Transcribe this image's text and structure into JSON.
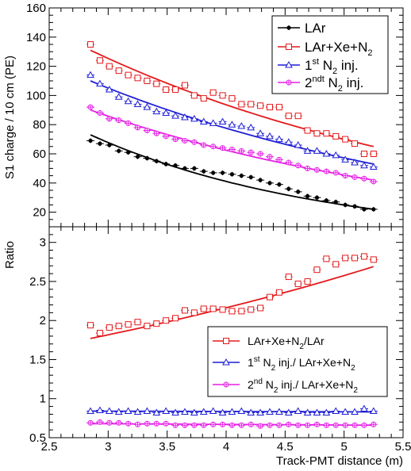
{
  "colors": {
    "larr": "#000000",
    "xe": "#e41a1c",
    "n1": "#1f1fd6",
    "n2": "#e61fe6",
    "axis": "#000000"
  },
  "chart_data": [
    {
      "type": "scatter",
      "ylabel": "S1 charge / 10 cm (PE)",
      "xlim": [
        2.5,
        5.5
      ],
      "ylim": [
        10,
        160
      ],
      "y_ticks": [
        20,
        40,
        60,
        80,
        100,
        120,
        140,
        160
      ],
      "legend_position": "top-right",
      "legend": [
        {
          "text": "LAr",
          "series": 0
        },
        {
          "text": "LAr+Xe+N",
          "sub": "2",
          "series": 1
        },
        {
          "text": " N",
          "sup": "st",
          "pre": "1",
          "sub": "2",
          "post": " inj.",
          "series": 2
        },
        {
          "text": " N",
          "sup": "ndt",
          "pre": "2",
          "sub": "2",
          "post": " inj.",
          "series": 3
        }
      ],
      "series": [
        {
          "name": "LAr",
          "marker": "filled-circle",
          "color_key": "larr",
          "x": [
            2.85,
            2.93,
            3.01,
            3.09,
            3.17,
            3.25,
            3.33,
            3.41,
            3.49,
            3.57,
            3.65,
            3.73,
            3.81,
            3.89,
            3.97,
            4.05,
            4.13,
            4.21,
            4.29,
            4.37,
            4.45,
            4.53,
            4.61,
            4.69,
            4.77,
            4.85,
            4.93,
            5.01,
            5.09,
            5.17,
            5.25
          ],
          "y": [
            69,
            67,
            66,
            62,
            61,
            58,
            57,
            55,
            53,
            52,
            50,
            50,
            48,
            47,
            47,
            46,
            45,
            44,
            42,
            40,
            39,
            36,
            34,
            31,
            30,
            28,
            27,
            25,
            24,
            22,
            22
          ],
          "fit": [
            73,
            22
          ]
        },
        {
          "name": "LAr+Xe+N2",
          "marker": "open-square",
          "color_key": "xe",
          "x": [
            2.85,
            2.93,
            3.01,
            3.09,
            3.17,
            3.25,
            3.33,
            3.41,
            3.49,
            3.57,
            3.65,
            3.73,
            3.81,
            3.89,
            3.97,
            4.05,
            4.13,
            4.21,
            4.29,
            4.37,
            4.45,
            4.53,
            4.61,
            4.69,
            4.77,
            4.85,
            4.93,
            5.01,
            5.09,
            5.17,
            5.25
          ],
          "y": [
            135,
            124,
            120,
            117,
            114,
            112,
            110,
            108,
            104,
            104,
            107,
            100,
            98,
            102,
            100,
            98,
            94,
            94,
            93,
            92,
            92,
            86,
            86,
            76,
            74,
            74,
            72,
            70,
            67,
            60,
            60
          ],
          "fit": [
            131,
            65
          ]
        },
        {
          "name": "1st N2 inj.",
          "marker": "open-triangle",
          "color_key": "n1",
          "x": [
            2.85,
            2.93,
            3.01,
            3.09,
            3.17,
            3.25,
            3.33,
            3.41,
            3.49,
            3.57,
            3.65,
            3.73,
            3.81,
            3.89,
            3.97,
            4.05,
            4.13,
            4.21,
            4.29,
            4.37,
            4.45,
            4.53,
            4.61,
            4.69,
            4.77,
            4.85,
            4.93,
            5.01,
            5.09,
            5.17,
            5.25
          ],
          "y": [
            114,
            108,
            104,
            99,
            96,
            94,
            92,
            89,
            88,
            86,
            85,
            84,
            82,
            81,
            82,
            80,
            79,
            78,
            74,
            72,
            70,
            68,
            66,
            62,
            62,
            60,
            59,
            56,
            54,
            52,
            51
          ],
          "fit": [
            110,
            53
          ]
        },
        {
          "name": "2ndt N2 inj.",
          "marker": "open-star",
          "color_key": "n2",
          "x": [
            2.85,
            2.93,
            3.01,
            3.09,
            3.17,
            3.25,
            3.33,
            3.41,
            3.49,
            3.57,
            3.65,
            3.73,
            3.81,
            3.89,
            3.97,
            4.05,
            4.13,
            4.21,
            4.29,
            4.37,
            4.45,
            4.53,
            4.61,
            4.69,
            4.77,
            4.85,
            4.93,
            5.01,
            5.09,
            5.17,
            5.25
          ],
          "y": [
            92,
            88,
            84,
            83,
            81,
            78,
            76,
            74,
            72,
            70,
            69,
            68,
            66,
            65,
            64,
            63,
            62,
            61,
            60,
            58,
            56,
            54,
            52,
            50,
            49,
            48,
            47,
            45,
            44,
            43,
            41
          ],
          "fit": [
            90,
            42
          ]
        }
      ]
    },
    {
      "type": "scatter",
      "xlabel": "Track-PMT distance (m)",
      "ylabel": "Ratio",
      "xlim": [
        2.5,
        5.5
      ],
      "ylim": [
        0.5,
        3.2
      ],
      "x_ticks": [
        2.5,
        3,
        3.5,
        4,
        4.5,
        5,
        5.5
      ],
      "y_ticks": [
        0.5,
        1,
        1.5,
        2,
        2.5,
        3
      ],
      "legend_position": "bottom-right",
      "legend": [
        {
          "pre": "LAr+Xe+N",
          "sub": "2",
          "post": "/LAr",
          "series": 0
        },
        {
          "pre": "1",
          "sup": "st",
          "mid": " N",
          "sub": "2",
          "post": " inj./ LAr+Xe+N",
          "sub2": "2",
          "series": 1
        },
        {
          "pre": "2",
          "sup": "nd",
          "mid": " N",
          "sub": "2",
          "post": " inj./ LAr+Xe+N",
          "sub2": "2",
          "series": 2
        }
      ],
      "series": [
        {
          "name": "LAr+Xe+N2/LAr",
          "marker": "open-square",
          "color_key": "xe",
          "x": [
            2.85,
            2.93,
            3.01,
            3.09,
            3.17,
            3.25,
            3.33,
            3.41,
            3.49,
            3.57,
            3.65,
            3.73,
            3.81,
            3.89,
            3.97,
            4.05,
            4.13,
            4.21,
            4.29,
            4.37,
            4.45,
            4.53,
            4.61,
            4.69,
            4.77,
            4.85,
            4.93,
            5.01,
            5.09,
            5.17,
            5.25
          ],
          "y": [
            1.94,
            1.84,
            1.91,
            1.93,
            1.95,
            1.98,
            1.93,
            1.96,
            2.0,
            2.03,
            2.13,
            2.1,
            2.15,
            2.15,
            2.14,
            2.12,
            2.12,
            2.14,
            2.16,
            2.3,
            2.36,
            2.56,
            2.47,
            2.5,
            2.65,
            2.79,
            2.72,
            2.8,
            2.8,
            2.82,
            2.78
          ],
          "fit": [
            1.77,
            2.69
          ]
        },
        {
          "name": "1st N2 inj./ LAr+Xe+N2",
          "marker": "open-triangle",
          "color_key": "n1",
          "x": [
            2.85,
            2.93,
            3.01,
            3.09,
            3.17,
            3.25,
            3.33,
            3.41,
            3.49,
            3.57,
            3.65,
            3.73,
            3.81,
            3.89,
            3.97,
            4.05,
            4.13,
            4.21,
            4.29,
            4.37,
            4.45,
            4.53,
            4.61,
            4.69,
            4.77,
            4.85,
            4.93,
            5.01,
            5.09,
            5.17,
            5.25
          ],
          "y": [
            0.84,
            0.85,
            0.84,
            0.83,
            0.84,
            0.83,
            0.84,
            0.82,
            0.84,
            0.82,
            0.83,
            0.82,
            0.83,
            0.84,
            0.82,
            0.83,
            0.84,
            0.82,
            0.82,
            0.83,
            0.83,
            0.82,
            0.84,
            0.82,
            0.82,
            0.82,
            0.84,
            0.83,
            0.83,
            0.87,
            0.84
          ],
          "fit": [
            0.84,
            0.83
          ]
        },
        {
          "name": "2nd N2 inj./ LAr+Xe+N2",
          "marker": "open-star",
          "color_key": "n2",
          "x": [
            2.85,
            2.93,
            3.01,
            3.09,
            3.17,
            3.25,
            3.33,
            3.41,
            3.49,
            3.57,
            3.65,
            3.73,
            3.81,
            3.89,
            3.97,
            4.05,
            4.13,
            4.21,
            4.29,
            4.37,
            4.45,
            4.53,
            4.61,
            4.69,
            4.77,
            4.85,
            4.93,
            5.01,
            5.09,
            5.17,
            5.25
          ],
          "y": [
            0.69,
            0.7,
            0.69,
            0.69,
            0.68,
            0.67,
            0.68,
            0.68,
            0.68,
            0.66,
            0.66,
            0.66,
            0.66,
            0.67,
            0.67,
            0.66,
            0.66,
            0.67,
            0.65,
            0.66,
            0.66,
            0.67,
            0.66,
            0.66,
            0.67,
            0.66,
            0.66,
            0.66,
            0.66,
            0.66,
            0.67
          ],
          "fit": [
            0.68,
            0.66
          ]
        }
      ]
    }
  ]
}
